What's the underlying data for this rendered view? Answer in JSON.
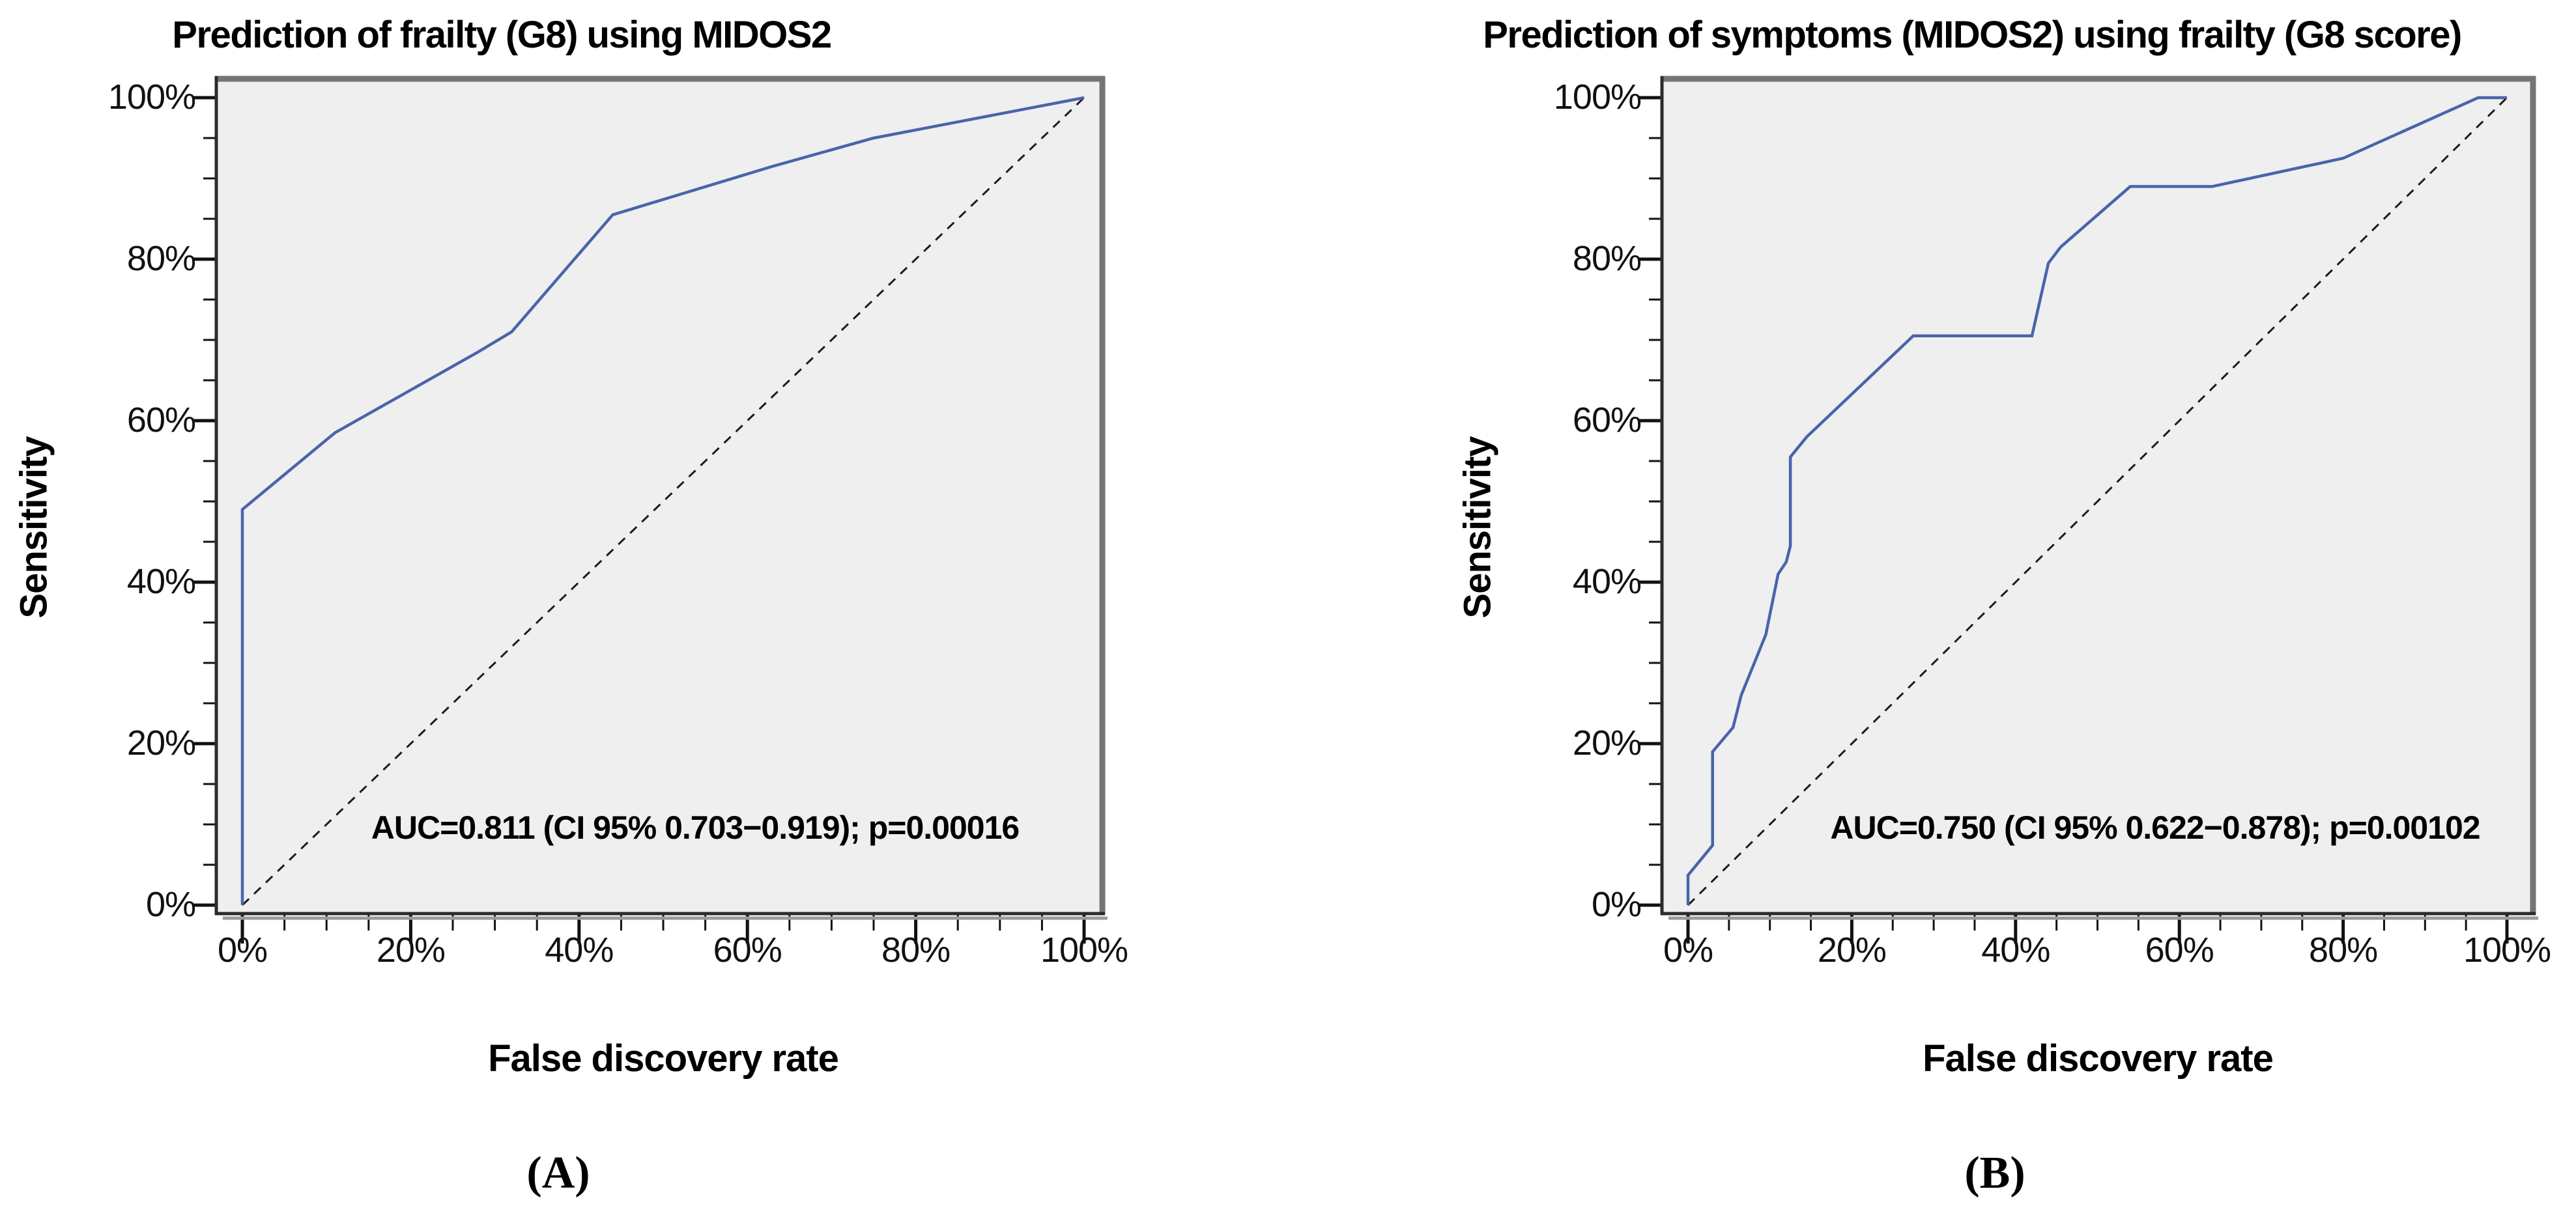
{
  "figure": {
    "kind": "roc-curve-comparison",
    "colors": {
      "curve": "#4a64aa",
      "diagonal": "#1c1c1c",
      "plot_bg": "#efefef",
      "border_dark": "#2b2b2b",
      "border_gray": "#757575",
      "tick": "#111111",
      "page_bg": "#ffffff",
      "text": "#000000"
    }
  },
  "chart_data": [
    {
      "type": "line",
      "panel": "A",
      "title": "Prediction of frailty (G8) using MIDOS2",
      "xlabel": "False discovery rate",
      "ylabel": "Sensitivity",
      "caption": "(A)",
      "annotation": "AUC=0.811 (CI 95% 0.703−0.919); p=0.00016",
      "auc": 0.811,
      "ci_95_low": 0.703,
      "ci_95_high": 0.919,
      "p_value": 0.00016,
      "xlim": [
        0,
        100
      ],
      "ylim": [
        0,
        100
      ],
      "x_tick_labels": [
        "0%",
        "20%",
        "40%",
        "60%",
        "80%",
        "100%"
      ],
      "y_tick_labels": [
        "0%",
        "20%",
        "40%",
        "60%",
        "80%",
        "100%"
      ],
      "major_tick_step_pct": 20,
      "minor_tick_step_pct": 5,
      "grid": false,
      "legend": false,
      "series": [
        {
          "name": "ROC curve",
          "style": "solid",
          "color_key": "curve",
          "points": [
            [
              0,
              0
            ],
            [
              0,
              49
            ],
            [
              11,
              58.5
            ],
            [
              28,
              68.5
            ],
            [
              32,
              71
            ],
            [
              44,
              85.5
            ],
            [
              63,
              91.5
            ],
            [
              75,
              95
            ],
            [
              100,
              100
            ]
          ]
        },
        {
          "name": "Reference diagonal",
          "style": "dashed",
          "color_key": "diagonal",
          "points": [
            [
              0,
              0
            ],
            [
              100,
              100
            ]
          ]
        }
      ]
    },
    {
      "type": "line",
      "panel": "B",
      "title": "Prediction of symptoms (MIDOS2) using frailty (G8 score)",
      "xlabel": "False discovery rate",
      "ylabel": "Sensitivity",
      "caption": "(B)",
      "annotation": "AUC=0.750 (CI 95% 0.622−0.878); p=0.00102",
      "auc": 0.75,
      "ci_95_low": 0.622,
      "ci_95_high": 0.878,
      "p_value": 0.00102,
      "xlim": [
        0,
        100
      ],
      "ylim": [
        0,
        100
      ],
      "x_tick_labels": [
        "0%",
        "20%",
        "40%",
        "60%",
        "80%",
        "100%"
      ],
      "y_tick_labels": [
        "0%",
        "20%",
        "40%",
        "60%",
        "80%",
        "100%"
      ],
      "major_tick_step_pct": 20,
      "minor_tick_step_pct": 5,
      "grid": false,
      "legend": false,
      "series": [
        {
          "name": "ROC curve",
          "style": "solid",
          "color_key": "curve",
          "points": [
            [
              0,
              0
            ],
            [
              0,
              3.7
            ],
            [
              3,
              7.4
            ],
            [
              3,
              19
            ],
            [
              5.5,
              22
            ],
            [
              6.5,
              26
            ],
            [
              9.5,
              33.5
            ],
            [
              11,
              41
            ],
            [
              12,
              42.5
            ],
            [
              12.5,
              44.5
            ],
            [
              12.5,
              55.5
            ],
            [
              14.5,
              58
            ],
            [
              27.5,
              70.5
            ],
            [
              42,
              70.5
            ],
            [
              44,
              79.5
            ],
            [
              45.5,
              81.5
            ],
            [
              54,
              89
            ],
            [
              64,
              89
            ],
            [
              80,
              92.5
            ],
            [
              96.5,
              100
            ],
            [
              100,
              100
            ]
          ]
        },
        {
          "name": "Reference diagonal",
          "style": "dashed",
          "color_key": "diagonal",
          "points": [
            [
              0,
              0
            ],
            [
              100,
              100
            ]
          ]
        }
      ]
    }
  ]
}
